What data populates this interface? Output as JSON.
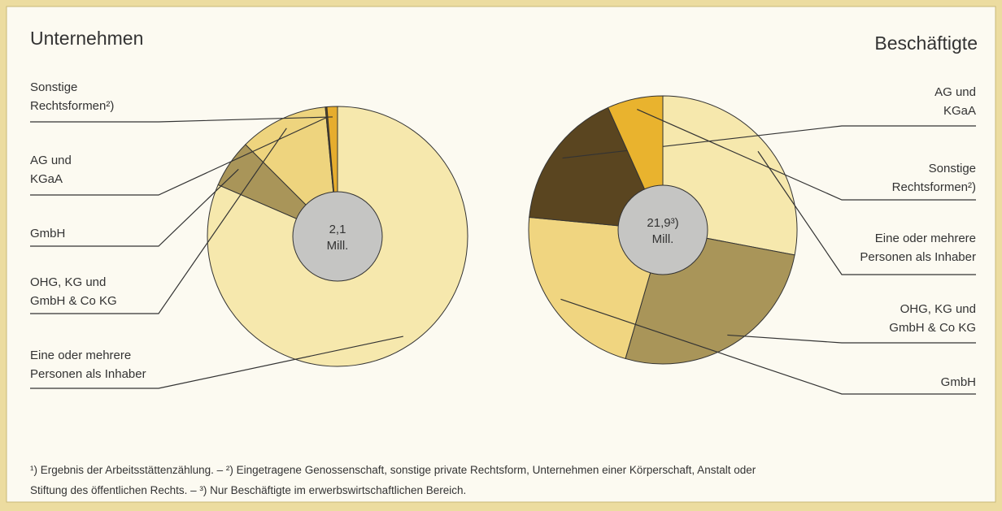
{
  "chart_data": [
    {
      "type": "pie",
      "title": "Unternehmen",
      "center_label": [
        "2,1",
        "Mill."
      ],
      "categories": [
        [
          "Eine oder mehrere",
          "Personen als Inhaber"
        ],
        [
          "GmbH"
        ],
        [
          "OHG, KG und",
          "GmbH & Co KG"
        ],
        [
          "AG und",
          "KGaA"
        ],
        [
          "Sonstige",
          "Rechtsformen²)"
        ]
      ],
      "values": [
        81.5,
        6,
        11,
        0.2,
        1.3
      ],
      "colors": [
        "#f6e8ad",
        "#a99559",
        "#eed47e",
        "#5a4520",
        "#e6ad2e"
      ]
    },
    {
      "type": "pie",
      "title": "Beschäftigte",
      "center_label": [
        "21,9³)",
        "Mill."
      ],
      "categories": [
        [
          "Eine oder mehrere",
          "Personen als Inhaber"
        ],
        [
          "OHG, KG und",
          "GmbH & Co KG"
        ],
        [
          "GmbH"
        ],
        [
          "AG und",
          "KGaA"
        ],
        [
          "Sonstige",
          "Rechtsformen²)"
        ]
      ],
      "values": [
        28,
        26.5,
        22,
        16.8,
        6.7
      ],
      "colors": [
        "#f6e8ad",
        "#a99559",
        "#f0d580",
        "#5a4520",
        "#e9b32e"
      ]
    }
  ],
  "footnote": [
    "¹) Ergebnis der Arbeitsstättenzählung. – ²) Eingetragene Genossenschaft, sonstige private Rechtsform, Unternehmen einer Körperschaft, Anstalt oder",
    "Stiftung des öffentlichen Rechts. – ³) Nur Beschäftigte im erwerbswirtschaftlichen Bereich."
  ]
}
